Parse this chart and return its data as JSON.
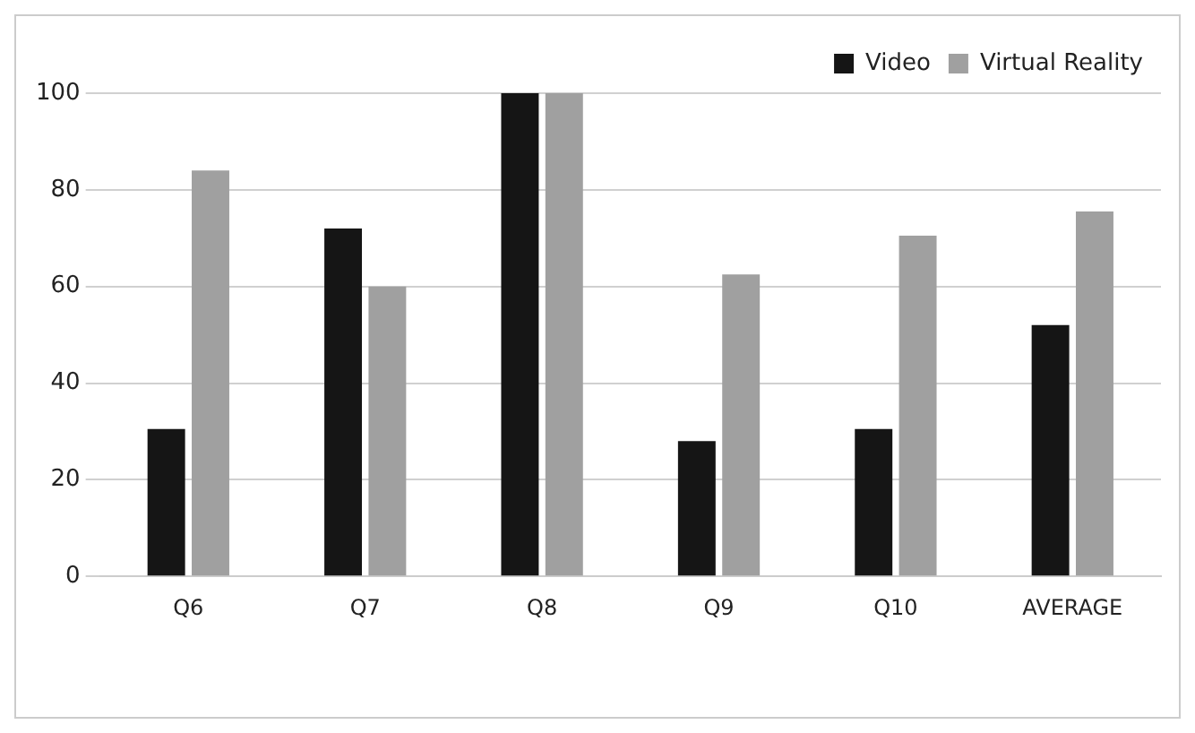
{
  "chart_data": {
    "type": "bar",
    "categories": [
      "Q6",
      "Q7",
      "Q8",
      "Q9",
      "Q10",
      "AVERAGE"
    ],
    "series": [
      {
        "name": "Video",
        "color": "#151515",
        "values": [
          30.5,
          72,
          100,
          28,
          30.5,
          52
        ]
      },
      {
        "name": "Virtual Reality",
        "color": "#a0a0a0",
        "values": [
          84,
          60,
          100,
          62.5,
          70.5,
          75.5
        ]
      }
    ],
    "ylim": [
      0,
      100
    ],
    "yticks": [
      0,
      20,
      40,
      60,
      80,
      100
    ],
    "grid": "y",
    "legend": "top right"
  }
}
